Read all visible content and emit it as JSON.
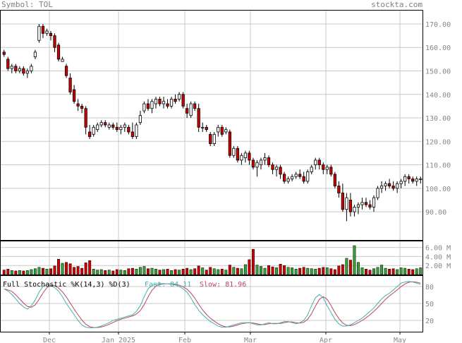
{
  "header": {
    "symbol_label": "Symbol: TOL",
    "site": "stockta.com"
  },
  "colors": {
    "up": "#ffffff",
    "down": "#d40000",
    "volume": "#33a333",
    "fast": "#40b0b0",
    "slow": "#c04060",
    "grid": "#c8c8c8"
  },
  "chart_data": [
    {
      "type": "candlestick",
      "name": "price",
      "ylim": [
        78,
        176
      ],
      "yticks": [
        "170.00",
        "160.00",
        "150.00",
        "140.00",
        "130.00",
        "120.00",
        "110.00",
        "100.00",
        "90.00"
      ],
      "xlabels": [
        "Dec",
        "Jan 2025",
        "Feb",
        "Mar",
        "Apr",
        "May"
      ],
      "ohlc": [
        [
          158,
          159,
          156,
          157
        ],
        [
          155,
          156,
          150,
          151
        ],
        [
          151,
          153,
          149,
          152
        ],
        [
          152,
          153,
          149,
          150
        ],
        [
          150,
          152,
          149,
          151
        ],
        [
          151,
          152,
          148,
          149
        ],
        [
          149,
          151,
          147,
          150
        ],
        [
          150,
          153,
          149,
          152
        ],
        [
          156,
          159,
          155,
          158
        ],
        [
          163,
          170,
          162,
          169
        ],
        [
          169,
          170,
          164,
          166
        ],
        [
          166,
          168,
          165,
          167
        ],
        [
          166,
          167,
          163,
          165
        ],
        [
          165,
          166,
          158,
          160
        ],
        [
          161,
          162,
          154,
          155
        ],
        [
          154,
          156,
          154,
          155
        ],
        [
          152,
          153,
          147,
          148
        ],
        [
          147,
          149,
          140,
          141
        ],
        [
          142,
          144,
          136,
          137
        ],
        [
          136,
          138,
          133,
          135
        ],
        [
          135,
          136,
          132,
          134
        ],
        [
          134,
          135,
          123,
          126
        ],
        [
          124,
          127,
          121,
          122
        ],
        [
          123,
          127,
          122,
          126
        ],
        [
          125,
          128,
          124,
          127
        ],
        [
          127,
          129,
          126,
          128
        ],
        [
          128,
          129,
          126,
          127
        ],
        [
          126,
          128,
          125,
          127
        ],
        [
          127,
          128,
          125,
          126
        ],
        [
          126,
          128,
          124,
          125
        ],
        [
          125,
          127,
          123,
          126
        ],
        [
          126,
          128,
          124,
          127
        ],
        [
          126,
          127,
          123,
          124
        ],
        [
          124,
          128,
          121,
          122
        ],
        [
          122,
          128,
          121,
          127
        ],
        [
          128,
          133,
          127,
          131
        ],
        [
          133,
          137,
          132,
          136
        ],
        [
          136,
          138,
          133,
          134
        ],
        [
          134,
          138,
          132,
          137
        ],
        [
          136,
          139,
          134,
          138
        ],
        [
          138,
          139,
          135,
          136
        ],
        [
          136,
          139,
          134,
          137
        ],
        [
          136,
          138,
          134,
          135
        ],
        [
          135,
          139,
          134,
          138
        ],
        [
          138,
          140,
          136,
          137
        ],
        [
          138,
          141,
          137,
          140
        ],
        [
          140,
          141,
          134,
          135
        ],
        [
          134,
          136,
          130,
          132
        ],
        [
          131,
          137,
          130,
          136
        ],
        [
          136,
          137,
          133,
          134
        ],
        [
          134,
          136,
          124,
          126
        ],
        [
          126,
          128,
          124,
          126
        ],
        [
          126,
          127,
          124,
          125
        ],
        [
          123,
          124,
          118,
          119
        ],
        [
          119,
          124,
          118,
          123
        ],
        [
          124,
          127,
          122,
          126
        ],
        [
          126,
          127,
          122,
          123
        ],
        [
          124,
          126,
          123,
          125
        ],
        [
          124,
          125,
          113,
          114
        ],
        [
          114,
          118,
          113,
          117
        ],
        [
          117,
          118,
          111,
          112
        ],
        [
          112,
          115,
          110,
          114
        ],
        [
          113,
          116,
          111,
          115
        ],
        [
          115,
          116,
          110,
          112
        ],
        [
          112,
          113,
          108,
          109
        ],
        [
          109,
          112,
          105,
          111
        ],
        [
          110,
          113,
          108,
          112
        ],
        [
          112,
          115,
          110,
          113
        ],
        [
          113,
          114,
          109,
          110
        ],
        [
          110,
          111,
          106,
          108
        ],
        [
          108,
          110,
          105,
          109
        ],
        [
          109,
          110,
          104,
          106
        ],
        [
          106,
          107,
          102,
          103
        ],
        [
          103,
          105,
          102,
          104
        ],
        [
          104,
          106,
          103,
          105
        ],
        [
          105,
          107,
          104,
          106
        ],
        [
          106,
          108,
          104,
          105
        ],
        [
          105,
          107,
          102,
          103
        ],
        [
          103,
          108,
          102,
          107
        ],
        [
          107,
          110,
          106,
          109
        ],
        [
          110,
          113,
          108,
          112
        ],
        [
          112,
          113,
          108,
          110
        ],
        [
          110,
          111,
          106,
          108
        ],
        [
          108,
          110,
          106,
          109
        ],
        [
          109,
          110,
          105,
          106
        ],
        [
          106,
          107,
          100,
          101
        ],
        [
          101,
          103,
          96,
          98
        ],
        [
          98,
          102,
          90,
          91
        ],
        [
          91,
          98,
          86,
          96
        ],
        [
          95,
          98,
          88,
          90
        ],
        [
          90,
          93,
          88,
          92
        ],
        [
          92,
          94,
          89,
          93
        ],
        [
          93,
          96,
          91,
          94
        ],
        [
          94,
          96,
          92,
          93
        ],
        [
          93,
          95,
          91,
          92
        ],
        [
          92,
          97,
          90,
          96
        ],
        [
          96,
          101,
          95,
          100
        ],
        [
          100,
          103,
          98,
          101
        ],
        [
          101,
          103,
          99,
          102
        ],
        [
          102,
          104,
          100,
          101
        ],
        [
          101,
          103,
          99,
          100
        ],
        [
          100,
          103,
          98,
          102
        ],
        [
          102,
          104,
          100,
          103
        ],
        [
          103,
          106,
          101,
          105
        ],
        [
          105,
          106,
          102,
          104
        ],
        [
          104,
          105,
          102,
          103
        ],
        [
          103,
          105,
          101,
          104
        ],
        [
          104,
          105,
          102,
          104
        ]
      ],
      "volume_ylim": [
        0,
        7.5
      ],
      "volume_ticks": [
        "6.00 M",
        "4.00 M",
        "2.00 M"
      ],
      "volume_m": [
        1.0,
        1.2,
        0.9,
        0.8,
        0.9,
        0.8,
        0.9,
        1.1,
        1.3,
        1.6,
        1.4,
        1.2,
        1.3,
        1.9,
        3.4,
        2.5,
        2.7,
        2.4,
        1.6,
        1.8,
        1.4,
        2.6,
        3.1,
        1.2,
        1.0,
        1.1,
        0.9,
        1.0,
        0.8,
        1.1,
        1.0,
        0.9,
        1.3,
        1.4,
        1.2,
        1.6,
        1.8,
        1.3,
        1.4,
        1.2,
        1.0,
        1.1,
        1.2,
        0.9,
        1.1,
        1.0,
        1.2,
        1.4,
        1.1,
        1.3,
        1.9,
        1.5,
        1.0,
        1.6,
        1.3,
        1.1,
        1.2,
        1.0,
        2.1,
        1.6,
        1.4,
        1.3,
        2.2,
        3.3,
        5.6,
        2.1,
        1.8,
        1.4,
        2.0,
        1.7,
        1.5,
        2.3,
        2.0,
        1.6,
        1.5,
        1.2,
        1.4,
        1.6,
        1.4,
        1.3,
        1.2,
        1.4,
        1.6,
        1.5,
        1.3,
        1.1,
        1.9,
        2.2,
        3.6,
        3.2,
        6.4,
        2.7,
        1.5,
        1.2,
        1.0,
        1.3,
        1.6,
        2.1,
        1.4,
        1.2,
        1.3,
        1.1,
        1.5,
        1.4,
        1.2,
        1.1,
        1.3,
        1.5
      ]
    },
    {
      "type": "line",
      "name": "stochastic",
      "label_full": "Full Stochastic %K(14,3) %D(3)",
      "label_fast": "Fast: 84.11",
      "label_slow": "Slow: 81.96",
      "ylim": [
        0,
        100
      ],
      "yticks": [
        "80",
        "50",
        "20"
      ],
      "fast": [
        76,
        72,
        66,
        58,
        50,
        44,
        40,
        46,
        56,
        70,
        80,
        84,
        82,
        78,
        72,
        62,
        50,
        40,
        30,
        20,
        12,
        8,
        7,
        7,
        8,
        10,
        13,
        16,
        20,
        22,
        24,
        26,
        28,
        30,
        36,
        46,
        62,
        76,
        82,
        84,
        85,
        85,
        85,
        84,
        83,
        80,
        76,
        70,
        60,
        48,
        38,
        30,
        24,
        18,
        14,
        10,
        8,
        8,
        10,
        12,
        14,
        16,
        16,
        16,
        14,
        12,
        12,
        14,
        16,
        14,
        14,
        16,
        18,
        18,
        16,
        14,
        16,
        20,
        30,
        46,
        60,
        66,
        60,
        46,
        34,
        22,
        14,
        10,
        10,
        12,
        16,
        20,
        24,
        30,
        36,
        42,
        50,
        58,
        64,
        68,
        74,
        80,
        86,
        88,
        89,
        88,
        86,
        84
      ]
    }
  ]
}
